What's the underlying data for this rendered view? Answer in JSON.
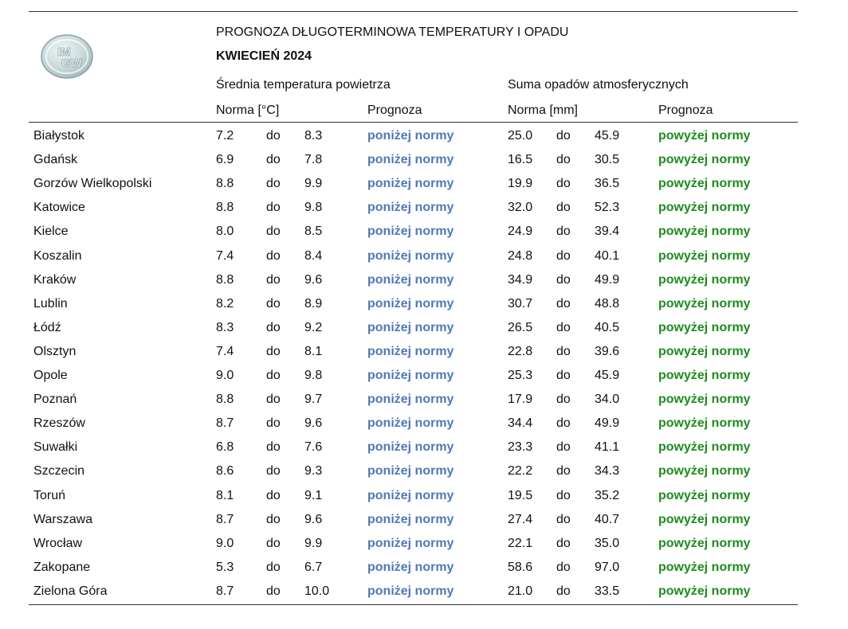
{
  "logo": {
    "line1": "IM",
    "line2": "GW"
  },
  "header": {
    "title": "PROGNOZA DŁUGOTERMINOWA TEMPERATURY I OPADU",
    "subtitle": "KWIECIEŃ 2024",
    "temp_group": "Średnia temperatura powietrza",
    "precip_group": "Suma opadów atmosferycznych",
    "temp_norm": "Norma [°C]",
    "temp_forecast": "Prognoza",
    "precip_norm": "Norma [mm]",
    "precip_forecast": "Prognoza"
  },
  "colors": {
    "below_norm": "#4f79b5",
    "above_norm": "#1d8c1d"
  },
  "rows": [
    {
      "city": "Białystok",
      "t_min": "7.2",
      "sep1": "do",
      "t_max": "8.3",
      "t_fc": "poniżej normy",
      "p_min": "25.0",
      "sep2": "do",
      "p_max": "45.9",
      "p_fc": "powyżej normy"
    },
    {
      "city": "Gdańsk",
      "t_min": "6.9",
      "sep1": "do",
      "t_max": "7.8",
      "t_fc": "poniżej normy",
      "p_min": "16.5",
      "sep2": "do",
      "p_max": "30.5",
      "p_fc": "powyżej normy"
    },
    {
      "city": "Gorzów Wielkopolski",
      "t_min": "8.8",
      "sep1": "do",
      "t_max": "9.9",
      "t_fc": "poniżej normy",
      "p_min": "19.9",
      "sep2": "do",
      "p_max": "36.5",
      "p_fc": "powyżej normy"
    },
    {
      "city": "Katowice",
      "t_min": "8.8",
      "sep1": "do",
      "t_max": "9.8",
      "t_fc": "poniżej normy",
      "p_min": "32.0",
      "sep2": "do",
      "p_max": "52.3",
      "p_fc": "powyżej normy"
    },
    {
      "city": "Kielce",
      "t_min": "8.0",
      "sep1": "do",
      "t_max": "8.5",
      "t_fc": "poniżej normy",
      "p_min": "24.9",
      "sep2": "do",
      "p_max": "39.4",
      "p_fc": "powyżej normy"
    },
    {
      "city": "Koszalin",
      "t_min": "7.4",
      "sep1": "do",
      "t_max": "8.4",
      "t_fc": "poniżej normy",
      "p_min": "24.8",
      "sep2": "do",
      "p_max": "40.1",
      "p_fc": "powyżej normy"
    },
    {
      "city": "Kraków",
      "t_min": "8.8",
      "sep1": "do",
      "t_max": "9.6",
      "t_fc": "poniżej normy",
      "p_min": "34.9",
      "sep2": "do",
      "p_max": "49.9",
      "p_fc": "powyżej normy"
    },
    {
      "city": "Lublin",
      "t_min": "8.2",
      "sep1": "do",
      "t_max": "8.9",
      "t_fc": "poniżej normy",
      "p_min": "30.7",
      "sep2": "do",
      "p_max": "48.8",
      "p_fc": "powyżej normy"
    },
    {
      "city": "Łódź",
      "t_min": "8.3",
      "sep1": "do",
      "t_max": "9.2",
      "t_fc": "poniżej normy",
      "p_min": "26.5",
      "sep2": "do",
      "p_max": "40.5",
      "p_fc": "powyżej normy"
    },
    {
      "city": "Olsztyn",
      "t_min": "7.4",
      "sep1": "do",
      "t_max": "8.1",
      "t_fc": "poniżej normy",
      "p_min": "22.8",
      "sep2": "do",
      "p_max": "39.6",
      "p_fc": "powyżej normy"
    },
    {
      "city": "Opole",
      "t_min": "9.0",
      "sep1": "do",
      "t_max": "9.8",
      "t_fc": "poniżej normy",
      "p_min": "25.3",
      "sep2": "do",
      "p_max": "45.9",
      "p_fc": "powyżej normy"
    },
    {
      "city": "Poznań",
      "t_min": "8.8",
      "sep1": "do",
      "t_max": "9.7",
      "t_fc": "poniżej normy",
      "p_min": "17.9",
      "sep2": "do",
      "p_max": "34.0",
      "p_fc": "powyżej normy"
    },
    {
      "city": "Rzeszów",
      "t_min": "8.7",
      "sep1": "do",
      "t_max": "9.6",
      "t_fc": "poniżej normy",
      "p_min": "34.4",
      "sep2": "do",
      "p_max": "49.9",
      "p_fc": "powyżej normy"
    },
    {
      "city": "Suwałki",
      "t_min": "6.8",
      "sep1": "do",
      "t_max": "7.6",
      "t_fc": "poniżej normy",
      "p_min": "23.3",
      "sep2": "do",
      "p_max": "41.1",
      "p_fc": "powyżej normy"
    },
    {
      "city": "Szczecin",
      "t_min": "8.6",
      "sep1": "do",
      "t_max": "9.3",
      "t_fc": "poniżej normy",
      "p_min": "22.2",
      "sep2": "do",
      "p_max": "34.3",
      "p_fc": "powyżej normy"
    },
    {
      "city": "Toruń",
      "t_min": "8.1",
      "sep1": "do",
      "t_max": "9.1",
      "t_fc": "poniżej normy",
      "p_min": "19.5",
      "sep2": "do",
      "p_max": "35.2",
      "p_fc": "powyżej normy"
    },
    {
      "city": "Warszawa",
      "t_min": "8.7",
      "sep1": "do",
      "t_max": "9.6",
      "t_fc": "poniżej normy",
      "p_min": "27.4",
      "sep2": "do",
      "p_max": "40.7",
      "p_fc": "powyżej normy"
    },
    {
      "city": "Wrocław",
      "t_min": "9.0",
      "sep1": "do",
      "t_max": "9.9",
      "t_fc": "poniżej normy",
      "p_min": "22.1",
      "sep2": "do",
      "p_max": "35.0",
      "p_fc": "powyżej normy"
    },
    {
      "city": "Zakopane",
      "t_min": "5.3",
      "sep1": "do",
      "t_max": "6.7",
      "t_fc": "poniżej normy",
      "p_min": "58.6",
      "sep2": "do",
      "p_max": "97.0",
      "p_fc": "powyżej normy"
    },
    {
      "city": "Zielona Góra",
      "t_min": "8.7",
      "sep1": "do",
      "t_max": "10.0",
      "t_fc": "poniżej normy",
      "p_min": "21.0",
      "sep2": "do",
      "p_max": "33.5",
      "p_fc": "powyżej normy"
    }
  ]
}
